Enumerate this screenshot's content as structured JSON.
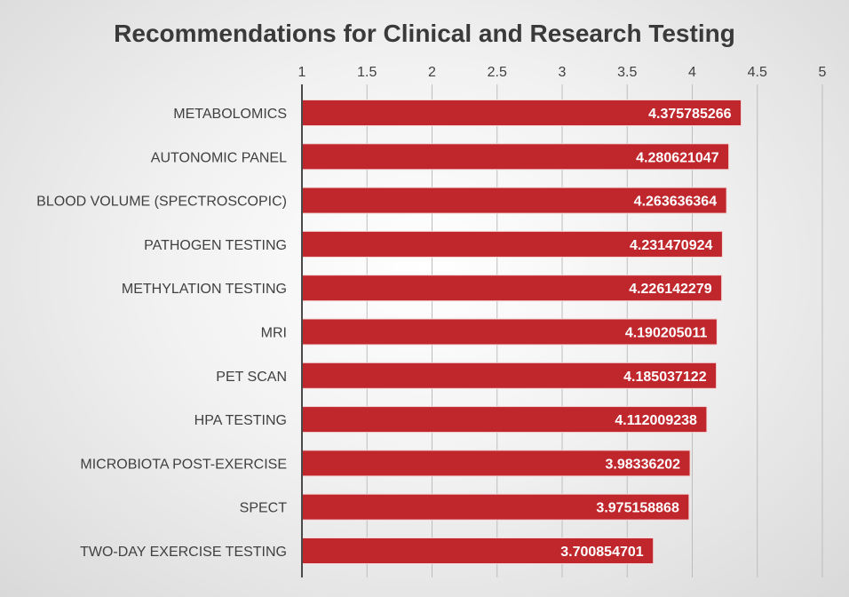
{
  "chart_data": {
    "type": "bar",
    "orientation": "horizontal",
    "title": "Recommendations for Clinical and Research Testing",
    "xlabel": "",
    "ylabel": "",
    "xlim": [
      1,
      5
    ],
    "ticks": [
      "1",
      "1.5",
      "2",
      "2.5",
      "3",
      "3.5",
      "4",
      "4.5",
      "5"
    ],
    "tick_values": [
      1,
      1.5,
      2,
      2.5,
      3,
      3.5,
      4,
      4.5,
      5
    ],
    "axis_position": "top",
    "grid": true,
    "legend": false,
    "bar_color": "#c0272d",
    "categories": [
      "METABOLOMICS",
      "AUTONOMIC PANEL",
      "BLOOD VOLUME (SPECTROSCOPIC)",
      "PATHOGEN TESTING",
      "METHYLATION TESTING",
      "MRI",
      "PET SCAN",
      "HPA TESTING",
      "MICROBIOTA POST-EXERCISE",
      "SPECT",
      "TWO-DAY EXERCISE TESTING"
    ],
    "values": [
      4.375785266,
      4.280621047,
      4.263636364,
      4.231470924,
      4.226142279,
      4.190205011,
      4.185037122,
      4.112009238,
      3.98336202,
      3.975158868,
      3.700854701
    ],
    "value_labels": [
      "4.375785266",
      "4.280621047",
      "4.263636364",
      "4.231470924",
      "4.226142279",
      "4.190205011",
      "4.185037122",
      "4.112009238",
      "3.98336202",
      "3.975158868",
      "3.700854701"
    ]
  }
}
